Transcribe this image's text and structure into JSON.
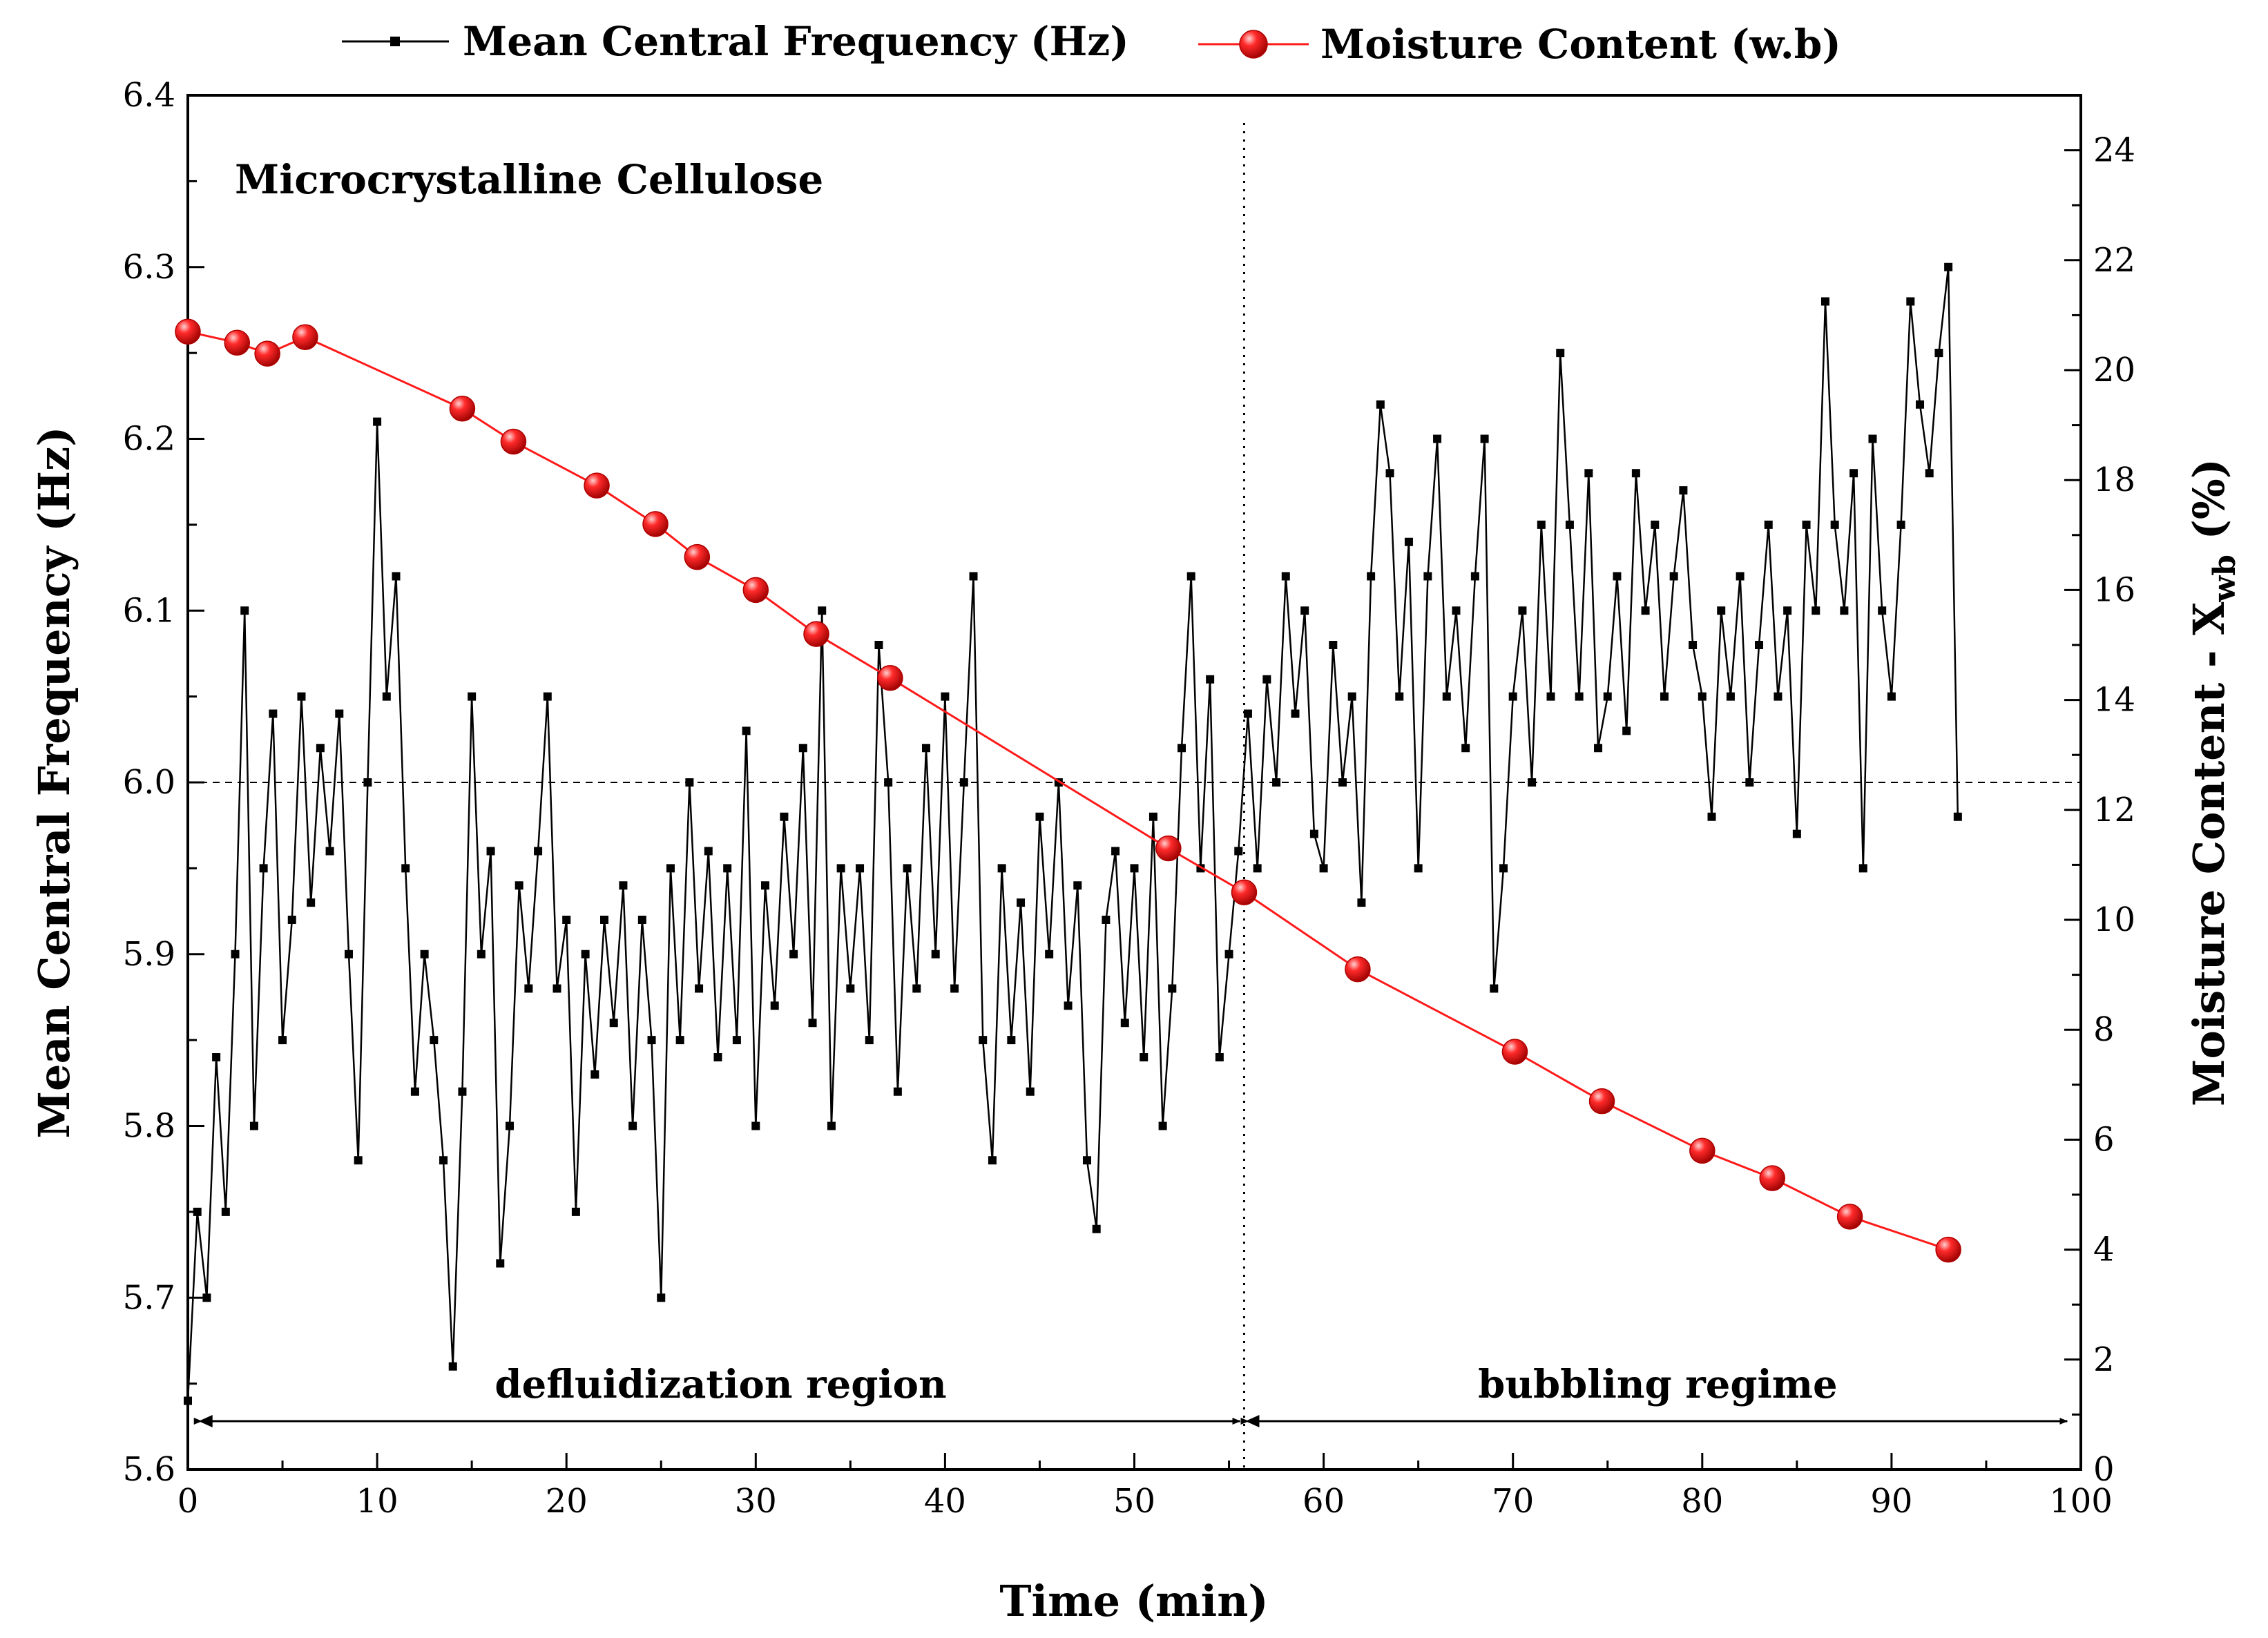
{
  "chart_data": {
    "type": "line",
    "annotation": "Microcrystalline Cellulose",
    "xlabel": "Time (min)",
    "ylabel_left": "Mean Central Frequency (Hz)",
    "ylabel_right_main": "Moisture Content - X",
    "ylabel_right_sub": "wb",
    "ylabel_right_tail": " (%)",
    "xlim": [
      0,
      100
    ],
    "ylim_left": [
      5.6,
      6.4
    ],
    "ylim_right": [
      0,
      25
    ],
    "x_ticks": [
      "0",
      "10",
      "20",
      "30",
      "40",
      "50",
      "60",
      "70",
      "80",
      "90",
      "100"
    ],
    "y_left_ticks": [
      "5.6",
      "5.7",
      "5.8",
      "5.9",
      "6.0",
      "6.1",
      "6.2",
      "6.3",
      "6.4"
    ],
    "y_right_ticks": [
      "0",
      "2",
      "4",
      "6",
      "8",
      "10",
      "12",
      "14",
      "16",
      "18",
      "20",
      "22",
      "24"
    ],
    "grid": false,
    "legend_position": "top",
    "reference_line_y_left": 6.0,
    "transition_x": 55.8,
    "regions": [
      {
        "label": "defluidization region",
        "x_start": 0.5,
        "x_end": 55.8
      },
      {
        "label": "bubbling regime",
        "x_start": 55.8,
        "x_end": 99.5
      }
    ],
    "series": [
      {
        "name": "Mean Central Frequency (Hz)",
        "axis": "left",
        "color": "#000000",
        "marker": "square",
        "points": [
          [
            0.0,
            5.64
          ],
          [
            0.5,
            5.75
          ],
          [
            1.0,
            5.7
          ],
          [
            1.5,
            5.84
          ],
          [
            2.0,
            5.75
          ],
          [
            2.5,
            5.9
          ],
          [
            3.0,
            6.1
          ],
          [
            3.5,
            5.8
          ],
          [
            4.0,
            5.95
          ],
          [
            4.5,
            6.04
          ],
          [
            5.0,
            5.85
          ],
          [
            5.5,
            5.92
          ],
          [
            6.0,
            6.05
          ],
          [
            6.5,
            5.93
          ],
          [
            7.0,
            6.02
          ],
          [
            7.5,
            5.96
          ],
          [
            8.0,
            6.04
          ],
          [
            8.5,
            5.9
          ],
          [
            9.0,
            5.78
          ],
          [
            9.5,
            6.0
          ],
          [
            10.0,
            6.21
          ],
          [
            10.5,
            6.05
          ],
          [
            11.0,
            6.12
          ],
          [
            11.5,
            5.95
          ],
          [
            12.0,
            5.82
          ],
          [
            12.5,
            5.9
          ],
          [
            13.0,
            5.85
          ],
          [
            13.5,
            5.78
          ],
          [
            14.0,
            5.66
          ],
          [
            14.5,
            5.82
          ],
          [
            15.0,
            6.05
          ],
          [
            15.5,
            5.9
          ],
          [
            16.0,
            5.96
          ],
          [
            16.5,
            5.72
          ],
          [
            17.0,
            5.8
          ],
          [
            17.5,
            5.94
          ],
          [
            18.0,
            5.88
          ],
          [
            18.5,
            5.96
          ],
          [
            19.0,
            6.05
          ],
          [
            19.5,
            5.88
          ],
          [
            20.0,
            5.92
          ],
          [
            20.5,
            5.75
          ],
          [
            21.0,
            5.9
          ],
          [
            21.5,
            5.83
          ],
          [
            22.0,
            5.92
          ],
          [
            22.5,
            5.86
          ],
          [
            23.0,
            5.94
          ],
          [
            23.5,
            5.8
          ],
          [
            24.0,
            5.92
          ],
          [
            24.5,
            5.85
          ],
          [
            25.0,
            5.7
          ],
          [
            25.5,
            5.95
          ],
          [
            26.0,
            5.85
          ],
          [
            26.5,
            6.0
          ],
          [
            27.0,
            5.88
          ],
          [
            27.5,
            5.96
          ],
          [
            28.0,
            5.84
          ],
          [
            28.5,
            5.95
          ],
          [
            29.0,
            5.85
          ],
          [
            29.5,
            6.03
          ],
          [
            30.0,
            5.8
          ],
          [
            30.5,
            5.94
          ],
          [
            31.0,
            5.87
          ],
          [
            31.5,
            5.98
          ],
          [
            32.0,
            5.9
          ],
          [
            32.5,
            6.02
          ],
          [
            33.0,
            5.86
          ],
          [
            33.5,
            6.1
          ],
          [
            34.0,
            5.8
          ],
          [
            34.5,
            5.95
          ],
          [
            35.0,
            5.88
          ],
          [
            35.5,
            5.95
          ],
          [
            36.0,
            5.85
          ],
          [
            36.5,
            6.08
          ],
          [
            37.0,
            6.0
          ],
          [
            37.5,
            5.82
          ],
          [
            38.0,
            5.95
          ],
          [
            38.5,
            5.88
          ],
          [
            39.0,
            6.02
          ],
          [
            39.5,
            5.9
          ],
          [
            40.0,
            6.05
          ],
          [
            40.5,
            5.88
          ],
          [
            41.0,
            6.0
          ],
          [
            41.5,
            6.12
          ],
          [
            42.0,
            5.85
          ],
          [
            42.5,
            5.78
          ],
          [
            43.0,
            5.95
          ],
          [
            43.5,
            5.85
          ],
          [
            44.0,
            5.93
          ],
          [
            44.5,
            5.82
          ],
          [
            45.0,
            5.98
          ],
          [
            45.5,
            5.9
          ],
          [
            46.0,
            6.0
          ],
          [
            46.5,
            5.87
          ],
          [
            47.0,
            5.94
          ],
          [
            47.5,
            5.78
          ],
          [
            48.0,
            5.74
          ],
          [
            48.5,
            5.92
          ],
          [
            49.0,
            5.96
          ],
          [
            49.5,
            5.86
          ],
          [
            50.0,
            5.95
          ],
          [
            50.5,
            5.84
          ],
          [
            51.0,
            5.98
          ],
          [
            51.5,
            5.8
          ],
          [
            52.0,
            5.88
          ],
          [
            52.5,
            6.02
          ],
          [
            53.0,
            6.12
          ],
          [
            53.5,
            5.95
          ],
          [
            54.0,
            6.06
          ],
          [
            54.5,
            5.84
          ],
          [
            55.0,
            5.9
          ],
          [
            55.5,
            5.96
          ],
          [
            56.0,
            6.04
          ],
          [
            56.5,
            5.95
          ],
          [
            57.0,
            6.06
          ],
          [
            57.5,
            6.0
          ],
          [
            58.0,
            6.12
          ],
          [
            58.5,
            6.04
          ],
          [
            59.0,
            6.1
          ],
          [
            59.5,
            5.97
          ],
          [
            60.0,
            5.95
          ],
          [
            60.5,
            6.08
          ],
          [
            61.0,
            6.0
          ],
          [
            61.5,
            6.05
          ],
          [
            62.0,
            5.93
          ],
          [
            62.5,
            6.12
          ],
          [
            63.0,
            6.22
          ],
          [
            63.5,
            6.18
          ],
          [
            64.0,
            6.05
          ],
          [
            64.5,
            6.14
          ],
          [
            65.0,
            5.95
          ],
          [
            65.5,
            6.12
          ],
          [
            66.0,
            6.2
          ],
          [
            66.5,
            6.05
          ],
          [
            67.0,
            6.1
          ],
          [
            67.5,
            6.02
          ],
          [
            68.0,
            6.12
          ],
          [
            68.5,
            6.2
          ],
          [
            69.0,
            5.88
          ],
          [
            69.5,
            5.95
          ],
          [
            70.0,
            6.05
          ],
          [
            70.5,
            6.1
          ],
          [
            71.0,
            6.0
          ],
          [
            71.5,
            6.15
          ],
          [
            72.0,
            6.05
          ],
          [
            72.5,
            6.25
          ],
          [
            73.0,
            6.15
          ],
          [
            73.5,
            6.05
          ],
          [
            74.0,
            6.18
          ],
          [
            74.5,
            6.02
          ],
          [
            75.0,
            6.05
          ],
          [
            75.5,
            6.12
          ],
          [
            76.0,
            6.03
          ],
          [
            76.5,
            6.18
          ],
          [
            77.0,
            6.1
          ],
          [
            77.5,
            6.15
          ],
          [
            78.0,
            6.05
          ],
          [
            78.5,
            6.12
          ],
          [
            79.0,
            6.17
          ],
          [
            79.5,
            6.08
          ],
          [
            80.0,
            6.05
          ],
          [
            80.5,
            5.98
          ],
          [
            81.0,
            6.1
          ],
          [
            81.5,
            6.05
          ],
          [
            82.0,
            6.12
          ],
          [
            82.5,
            6.0
          ],
          [
            83.0,
            6.08
          ],
          [
            83.5,
            6.15
          ],
          [
            84.0,
            6.05
          ],
          [
            84.5,
            6.1
          ],
          [
            85.0,
            5.97
          ],
          [
            85.5,
            6.15
          ],
          [
            86.0,
            6.1
          ],
          [
            86.5,
            6.28
          ],
          [
            87.0,
            6.15
          ],
          [
            87.5,
            6.1
          ],
          [
            88.0,
            6.18
          ],
          [
            88.5,
            5.95
          ],
          [
            89.0,
            6.2
          ],
          [
            89.5,
            6.1
          ],
          [
            90.0,
            6.05
          ],
          [
            90.5,
            6.15
          ],
          [
            91.0,
            6.28
          ],
          [
            91.5,
            6.22
          ],
          [
            92.0,
            6.18
          ],
          [
            92.5,
            6.25
          ],
          [
            93.0,
            6.3
          ],
          [
            93.5,
            5.98
          ]
        ]
      },
      {
        "name": "Moisture Content (w.b)",
        "axis": "right",
        "color": "#ff1a1a",
        "marker": "sphere",
        "points": [
          [
            0.0,
            20.7
          ],
          [
            2.6,
            20.5
          ],
          [
            4.2,
            20.3
          ],
          [
            6.2,
            20.6
          ],
          [
            14.5,
            19.3
          ],
          [
            17.2,
            18.7
          ],
          [
            21.6,
            17.9
          ],
          [
            24.7,
            17.2
          ],
          [
            26.9,
            16.6
          ],
          [
            30.0,
            16.0
          ],
          [
            33.2,
            15.2
          ],
          [
            37.1,
            14.4
          ],
          [
            51.8,
            11.3
          ],
          [
            55.8,
            10.5
          ],
          [
            61.8,
            9.1
          ],
          [
            70.1,
            7.6
          ],
          [
            74.7,
            6.7
          ],
          [
            80.0,
            5.8
          ],
          [
            83.7,
            5.3
          ],
          [
            87.8,
            4.6
          ],
          [
            93.0,
            4.0
          ]
        ]
      }
    ]
  }
}
